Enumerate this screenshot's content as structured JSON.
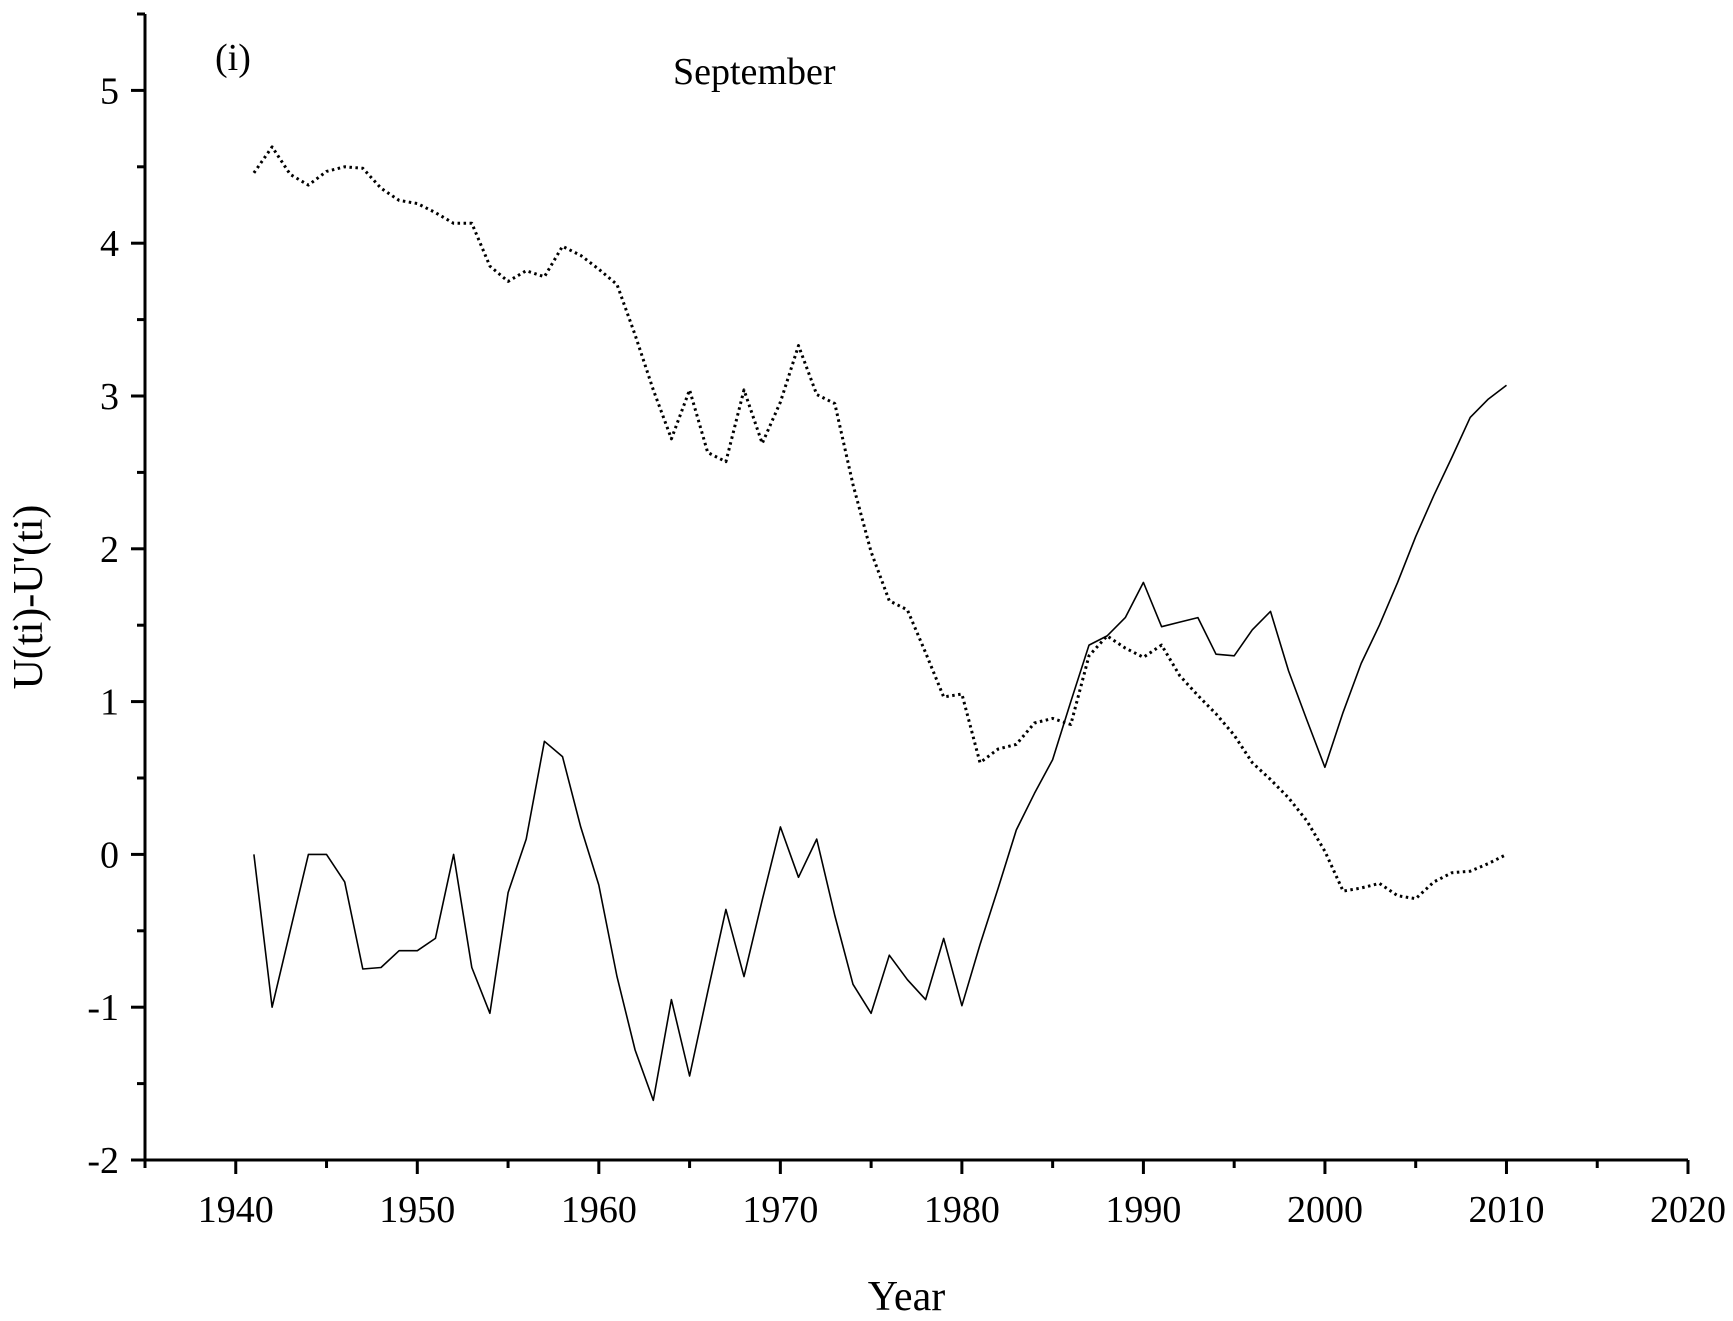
{
  "chart_data": {
    "type": "line",
    "title": "",
    "xlabel": "Year",
    "ylabel": "U(ti)-U'(ti)",
    "xlim": [
      1935,
      2020
    ],
    "ylim": [
      -2,
      5.5
    ],
    "xticks": [
      1940,
      1950,
      1960,
      1970,
      1980,
      1990,
      2000,
      2010,
      2020
    ],
    "yticks": [
      -2,
      -1,
      0,
      1,
      2,
      3,
      4,
      5
    ],
    "xtick_labels": [
      "1940",
      "1950",
      "1960",
      "1970",
      "1980",
      "1990",
      "2000",
      "2010",
      "2020"
    ],
    "ytick_labels": [
      "-2",
      "-1",
      "0",
      "1",
      "2",
      "3",
      "4",
      "5"
    ],
    "grid": false,
    "annotations": [
      {
        "text": "(i)"
      },
      {
        "text": "September"
      }
    ],
    "series": [
      {
        "style": "solid",
        "color": "#000000",
        "x": [
          1941,
          1942,
          1943,
          1944,
          1945,
          1946,
          1947,
          1948,
          1949,
          1950,
          1951,
          1952,
          1953,
          1954,
          1955,
          1956,
          1957,
          1958,
          1959,
          1960,
          1961,
          1962,
          1963,
          1964,
          1965,
          1966,
          1967,
          1968,
          1969,
          1970,
          1971,
          1972,
          1973,
          1974,
          1975,
          1976,
          1977,
          1978,
          1979,
          1980,
          1981,
          1982,
          1983,
          1984,
          1985,
          1986,
          1987,
          1988,
          1989,
          1990,
          1991,
          1992,
          1993,
          1994,
          1995,
          1996,
          1997,
          1998,
          1999,
          2000,
          2001,
          2002,
          2003,
          2004,
          2005,
          2006,
          2007,
          2008,
          2009,
          2010
        ],
        "y": [
          0,
          -1.0,
          -0.5,
          0,
          0,
          -0.18,
          -0.75,
          -0.74,
          -0.63,
          -0.63,
          -0.55,
          0,
          -0.74,
          -1.04,
          -0.25,
          0.1,
          0.74,
          0.64,
          0.18,
          -0.2,
          -0.8,
          -1.28,
          -1.61,
          -0.95,
          -1.45,
          -0.9,
          -0.36,
          -0.8,
          -0.3,
          0.18,
          -0.15,
          0.1,
          -0.4,
          -0.85,
          -1.04,
          -0.66,
          -0.82,
          -0.95,
          -0.55,
          -0.99,
          -0.59,
          -0.22,
          0.16,
          0.4,
          0.62,
          1.0,
          1.37,
          1.43,
          1.55,
          1.78,
          1.49,
          1.52,
          1.55,
          1.31,
          1.3,
          1.47,
          1.59,
          1.2,
          0.88,
          0.57,
          0.93,
          1.25,
          1.5,
          1.78,
          2.08,
          2.35,
          2.6,
          2.86,
          2.98,
          3.07
        ]
      },
      {
        "style": "dotted",
        "color": "#000000",
        "x": [
          1941,
          1942,
          1943,
          1944,
          1945,
          1946,
          1947,
          1948,
          1949,
          1950,
          1951,
          1952,
          1953,
          1954,
          1955,
          1956,
          1957,
          1958,
          1959,
          1960,
          1961,
          1962,
          1963,
          1964,
          1965,
          1966,
          1967,
          1968,
          1969,
          1970,
          1971,
          1972,
          1973,
          1974,
          1975,
          1976,
          1977,
          1978,
          1979,
          1980,
          1981,
          1982,
          1983,
          1984,
          1985,
          1986,
          1987,
          1988,
          1989,
          1990,
          1991,
          1992,
          1993,
          1994,
          1995,
          1996,
          1997,
          1998,
          1999,
          2000,
          2001,
          2002,
          2003,
          2004,
          2005,
          2006,
          2007,
          2008,
          2009,
          2010
        ],
        "y": [
          4.46,
          4.63,
          4.45,
          4.38,
          4.47,
          4.5,
          4.49,
          4.36,
          4.28,
          4.26,
          4.2,
          4.13,
          4.13,
          3.85,
          3.75,
          3.82,
          3.78,
          3.98,
          3.92,
          3.83,
          3.73,
          3.4,
          3.04,
          2.72,
          3.04,
          2.63,
          2.57,
          3.04,
          2.69,
          2.96,
          3.33,
          3.01,
          2.95,
          2.42,
          1.98,
          1.66,
          1.6,
          1.32,
          1.03,
          1.05,
          0.6,
          0.69,
          0.72,
          0.86,
          0.89,
          0.85,
          1.3,
          1.43,
          1.35,
          1.29,
          1.37,
          1.17,
          1.04,
          0.92,
          0.78,
          0.6,
          0.49,
          0.37,
          0.22,
          0.02,
          -0.24,
          -0.22,
          -0.19,
          -0.27,
          -0.29,
          -0.18,
          -0.12,
          -0.11,
          -0.06,
          0
        ]
      }
    ]
  }
}
